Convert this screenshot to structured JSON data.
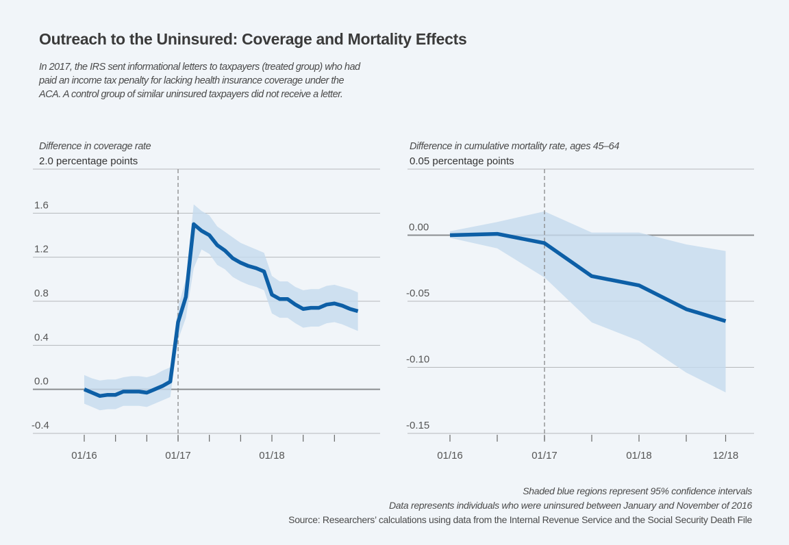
{
  "title": "Outreach to the Uninsured: Coverage and Mortality Effects",
  "subtitle_lines": [
    "In 2017, the IRS sent informational letters to taxpayers (treated group) who had",
    "paid an income tax penalty for lacking health insurance coverage under the",
    "ACA. A control group of similar uninsured taxpayers did not receive a letter."
  ],
  "notes": [
    "Shaded blue regions represent 95% confidence intervals",
    "Data represents individuals who were uninsured between January and November of 2016",
    "Source: Researchers’ calculations using data from the Internal Revenue Service and the Social Security Death File"
  ],
  "colors": {
    "line": "#0d5fa6",
    "band": "#c6dbed",
    "grid": "#b5b8bb",
    "zero": "#8a8d90"
  },
  "chart_data": [
    {
      "type": "line",
      "title": "Difference in coverage rate",
      "ylabel": "2.0 percentage points",
      "ylim": [
        -0.4,
        2.0
      ],
      "yticks": [
        -0.4,
        0.0,
        0.4,
        0.8,
        1.2,
        1.6,
        2.0
      ],
      "ytick_labels": [
        "-0.4",
        "0.0",
        "0.4",
        "0.8",
        "1.2",
        "1.6",
        ""
      ],
      "xlim": [
        0,
        38
      ],
      "x_unit": "months since 01/16",
      "xticks": [
        0,
        4,
        8,
        12,
        16,
        20,
        24,
        28,
        32
      ],
      "xtick_labels": {
        "0": "01/16",
        "12": "01/17",
        "24": "01/18"
      },
      "event_line_x": 12,
      "x": [
        0,
        1,
        2,
        3,
        4,
        5,
        6,
        7,
        8,
        9,
        10,
        11,
        12,
        13,
        14,
        15,
        16,
        17,
        18,
        19,
        20,
        21,
        22,
        23,
        24,
        25,
        26,
        27,
        28,
        29,
        30,
        31,
        32,
        33,
        34,
        35
      ],
      "values": [
        0.0,
        -0.03,
        -0.06,
        -0.05,
        -0.05,
        -0.02,
        -0.02,
        -0.02,
        -0.03,
        0.0,
        0.03,
        0.07,
        0.61,
        0.84,
        1.5,
        1.44,
        1.4,
        1.31,
        1.26,
        1.19,
        1.15,
        1.12,
        1.1,
        1.07,
        0.86,
        0.82,
        0.82,
        0.77,
        0.73,
        0.74,
        0.74,
        0.77,
        0.78,
        0.76,
        0.73,
        0.71
      ],
      "upper": [
        0.13,
        0.1,
        0.08,
        0.09,
        0.09,
        0.11,
        0.12,
        0.12,
        0.11,
        0.13,
        0.17,
        0.2,
        0.75,
        1.0,
        1.68,
        1.62,
        1.58,
        1.48,
        1.43,
        1.38,
        1.33,
        1.3,
        1.27,
        1.24,
        1.03,
        0.98,
        0.98,
        0.93,
        0.9,
        0.91,
        0.91,
        0.94,
        0.95,
        0.93,
        0.91,
        0.88
      ],
      "lower": [
        -0.13,
        -0.16,
        -0.19,
        -0.18,
        -0.18,
        -0.15,
        -0.15,
        -0.15,
        -0.16,
        -0.13,
        -0.1,
        -0.07,
        0.45,
        0.65,
        1.1,
        1.27,
        1.23,
        1.13,
        1.09,
        1.02,
        0.98,
        0.95,
        0.93,
        0.9,
        0.69,
        0.65,
        0.65,
        0.6,
        0.56,
        0.57,
        0.57,
        0.6,
        0.61,
        0.59,
        0.56,
        0.53
      ]
    },
    {
      "type": "line",
      "title": "Difference in cumulative mortality rate, ages 45–64",
      "ylabel": "0.05 percentage points",
      "ylim": [
        -0.15,
        0.05
      ],
      "yticks": [
        -0.15,
        -0.1,
        -0.05,
        0.0,
        0.05
      ],
      "ytick_labels": [
        "-0.15",
        "-0.10",
        "-0.05",
        "0.00",
        ""
      ],
      "xlim": [
        0,
        38
      ],
      "x_unit": "months since 01/16",
      "xticks": [
        0,
        6,
        12,
        18,
        24,
        30,
        35
      ],
      "xtick_labels": {
        "0": "01/16",
        "12": "01/17",
        "24": "01/18",
        "35": "12/18"
      },
      "event_line_x": 12,
      "x": [
        0,
        6,
        12,
        18,
        24,
        30,
        35
      ],
      "values": [
        0.0,
        0.001,
        -0.006,
        -0.031,
        -0.038,
        -0.056,
        -0.065
      ],
      "upper": [
        0.003,
        0.01,
        0.018,
        0.002,
        0.002,
        -0.007,
        -0.012
      ],
      "lower": [
        -0.002,
        -0.01,
        -0.032,
        -0.066,
        -0.08,
        -0.104,
        -0.119
      ]
    }
  ]
}
